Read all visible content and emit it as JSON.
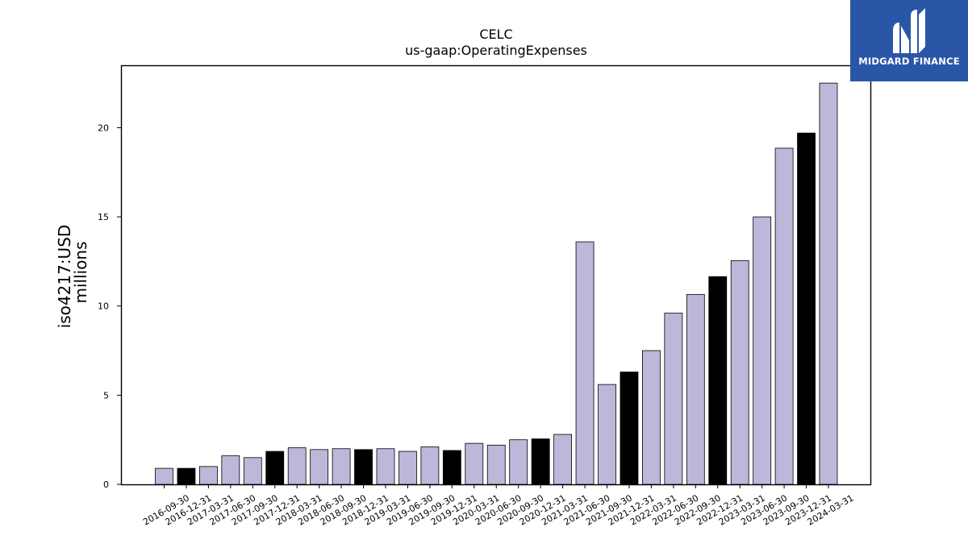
{
  "chart_data": {
    "type": "bar",
    "title": "CELC",
    "subtitle": "us-gaap:OperatingExpenses",
    "ylabel": "iso4217:USD",
    "ylabel_unit": "millions",
    "xlabel": "",
    "ylim": [
      0,
      23.5
    ],
    "yticks": [
      0,
      5,
      10,
      15,
      20
    ],
    "grid": false,
    "colors": {
      "quarter": "#bcb8da",
      "year_end": "#000000",
      "edge": "#000000"
    },
    "categories": [
      "2016-09-30",
      "2016-12-31",
      "2017-03-31",
      "2017-06-30",
      "2017-09-30",
      "2017-12-31",
      "2018-03-31",
      "2018-06-30",
      "2018-09-30",
      "2018-12-31",
      "2019-03-31",
      "2019-06-30",
      "2019-09-30",
      "2019-12-31",
      "2020-03-31",
      "2020-06-30",
      "2020-09-30",
      "2020-12-31",
      "2021-03-31",
      "2021-06-30",
      "2021-09-30",
      "2021-12-31",
      "2022-03-31",
      "2022-06-30",
      "2022-09-30",
      "2022-12-31",
      "2023-03-31",
      "2023-06-30",
      "2023-09-30",
      "2023-12-31",
      "2024-03-31"
    ],
    "values": [
      0.9,
      0.9,
      1.0,
      1.6,
      1.5,
      1.85,
      2.05,
      1.95,
      2.0,
      1.95,
      2.0,
      1.85,
      2.1,
      1.9,
      2.3,
      2.2,
      2.5,
      2.55,
      2.8,
      13.6,
      5.6,
      6.3,
      7.5,
      9.6,
      10.65,
      11.65,
      12.55,
      15.0,
      18.85,
      19.7,
      22.5
    ],
    "highlight": [
      false,
      true,
      false,
      false,
      false,
      true,
      false,
      false,
      false,
      true,
      false,
      false,
      false,
      true,
      false,
      false,
      false,
      true,
      false,
      false,
      false,
      true,
      false,
      false,
      false,
      true,
      false,
      false,
      false,
      true,
      false
    ]
  },
  "logo": {
    "text": "MIDGARD FINANCE"
  }
}
